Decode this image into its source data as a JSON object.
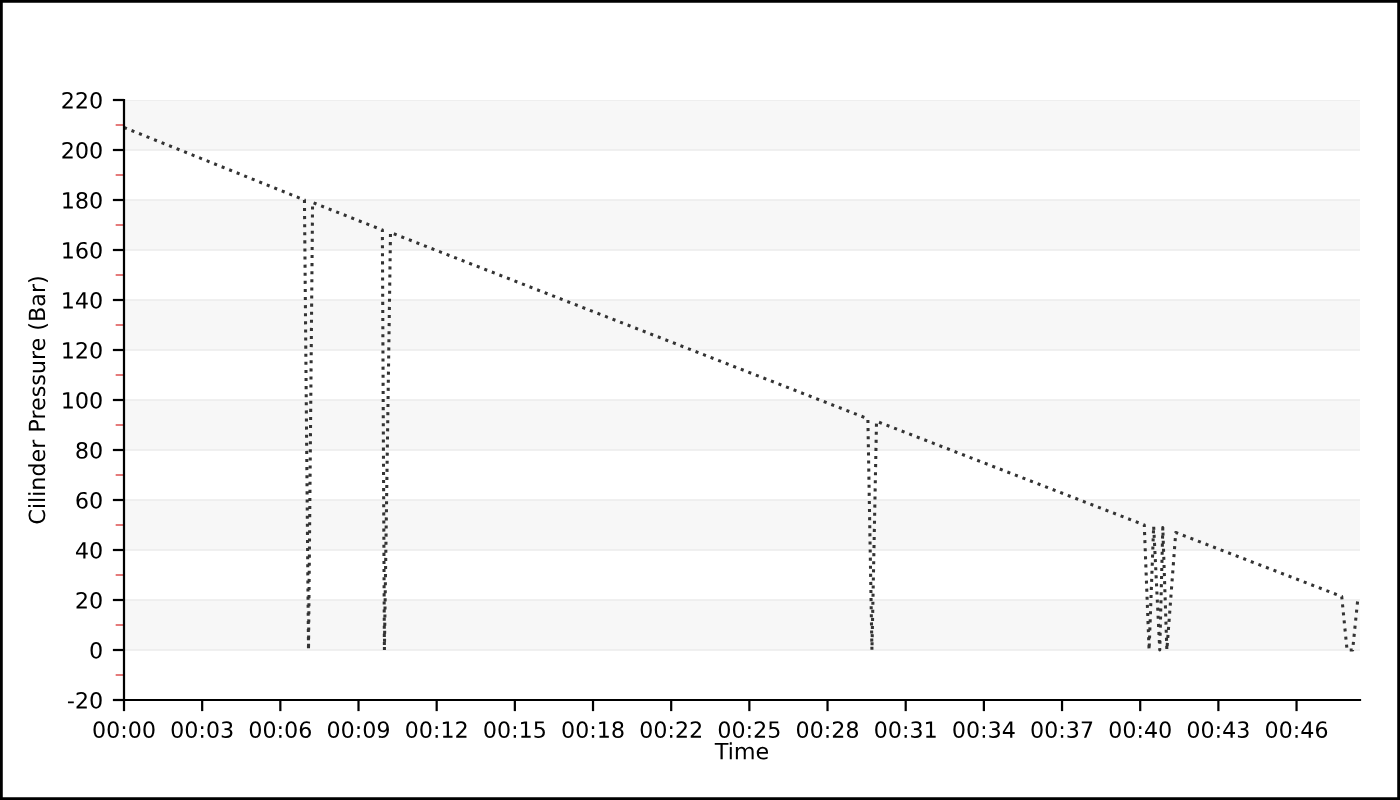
{
  "chart_data": {
    "type": "line",
    "xlabel": "Time",
    "ylabel": "Cilinder Pressure (Bar)",
    "x": [
      0,
      7.11,
      7.27,
      7.43,
      10.18,
      10.26,
      10.5,
      29.31,
      29.47,
      29.65,
      40.2,
      40.39,
      40.57,
      40.81,
      40.93,
      41.09,
      41.44,
      47.98,
      48.19,
      48.41,
      48.61
    ],
    "series": [
      {
        "color": "#333333",
        "values": [
          209,
          180,
          0,
          179,
          168,
          0,
          167,
          92.5,
          0,
          91.5,
          50,
          0,
          49.6,
          0,
          49,
          0,
          47,
          21.4,
          0,
          0,
          20
        ]
      }
    ],
    "xlim": [
      0,
      48.7
    ],
    "xticks": [
      {
        "value": 0,
        "label": "00:00"
      },
      {
        "value": 3.08,
        "label": "00:03"
      },
      {
        "value": 6.16,
        "label": "00:06"
      },
      {
        "value": 9.24,
        "label": "00:09"
      },
      {
        "value": 12.32,
        "label": "00:12"
      },
      {
        "value": 15.4,
        "label": "00:15"
      },
      {
        "value": 18.48,
        "label": "00:18"
      },
      {
        "value": 21.56,
        "label": "00:22"
      },
      {
        "value": 24.64,
        "label": "00:25"
      },
      {
        "value": 27.72,
        "label": "00:28"
      },
      {
        "value": 30.8,
        "label": "00:31"
      },
      {
        "value": 33.88,
        "label": "00:34"
      },
      {
        "value": 36.96,
        "label": "00:37"
      },
      {
        "value": 40.04,
        "label": "00:40"
      },
      {
        "value": 43.12,
        "label": "00:43"
      },
      {
        "value": 46.2,
        "label": "00:46"
      }
    ],
    "ylim": [
      -20,
      220
    ],
    "yticks": [
      -20,
      0,
      20,
      40,
      60,
      80,
      100,
      120,
      140,
      160,
      180,
      200,
      220
    ],
    "grid": "y",
    "line_style": "dotted",
    "marker": "none"
  }
}
